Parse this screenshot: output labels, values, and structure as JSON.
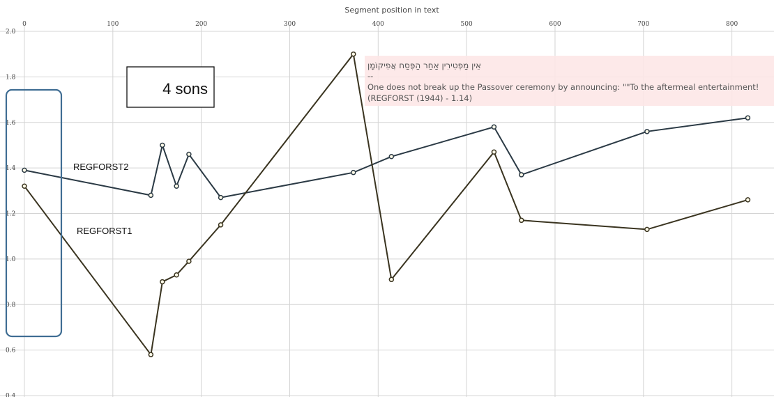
{
  "chart_data": {
    "type": "line",
    "xlabel": "Segment position in text",
    "ylabel": "",
    "xlim": [
      0,
      820
    ],
    "ylim": [
      0.4,
      2.0
    ],
    "x_ticks": [
      0,
      100,
      200,
      300,
      400,
      500,
      600,
      700,
      800
    ],
    "y_ticks": [
      0.4,
      0.6,
      0.8,
      1.0,
      1.2,
      1.4,
      1.6,
      1.8,
      2.0
    ],
    "y_tick_labels": [
      "0.4",
      "0.6",
      "0.8",
      "1.0",
      "1.2",
      "1.4",
      "1.6",
      "1.8",
      "2.0"
    ],
    "grid": true,
    "series": [
      {
        "name": "REGFORST2",
        "color": "#2b3a45",
        "x": [
          0,
          143,
          156,
          172,
          186,
          222,
          372,
          415,
          531,
          562,
          704,
          818
        ],
        "y": [
          1.39,
          1.28,
          1.5,
          1.32,
          1.46,
          1.27,
          1.38,
          1.45,
          1.58,
          1.37,
          1.56,
          1.62
        ]
      },
      {
        "name": "REGFORST1",
        "color": "#3a3420",
        "x": [
          0,
          143,
          156,
          172,
          186,
          222,
          372,
          415,
          531,
          562,
          704,
          818
        ],
        "y": [
          1.32,
          0.58,
          0.9,
          0.93,
          0.99,
          1.15,
          1.9,
          0.91,
          1.47,
          1.17,
          1.13,
          1.26
        ]
      }
    ],
    "tooltip": {
      "hebrew": "אֵין מַפְטִירִין אַחַר הַפֶּסַח אֲפִיקוֹמָן",
      "separator": "--",
      "english": "One does not break up the Passover ceremony by announcing: \"\"To the aftermeal entertainment!",
      "source": "(REGFORST (1944) - 1.14)"
    },
    "annotation": "4 sons"
  }
}
